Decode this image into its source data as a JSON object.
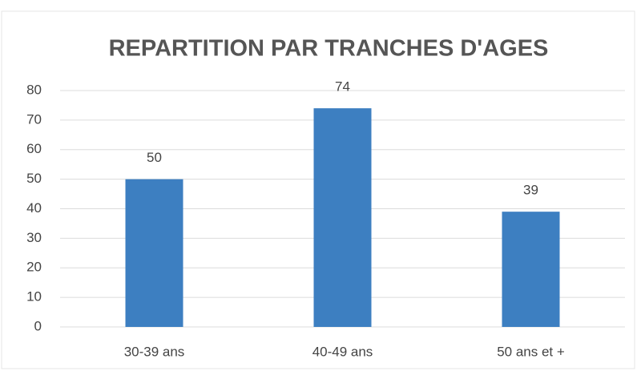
{
  "chart_data": {
    "type": "bar",
    "title": "REPARTITION PAR TRANCHES D'AGES",
    "categories": [
      "30-39 ans",
      "40-49 ans",
      "50 ans et +"
    ],
    "values": [
      50,
      74,
      39
    ],
    "color": "#3d7fc1",
    "ylim": [
      0,
      80
    ],
    "yticks": [
      0,
      10,
      20,
      30,
      40,
      50,
      60,
      70,
      80
    ],
    "grid": true,
    "data_labels": true
  }
}
